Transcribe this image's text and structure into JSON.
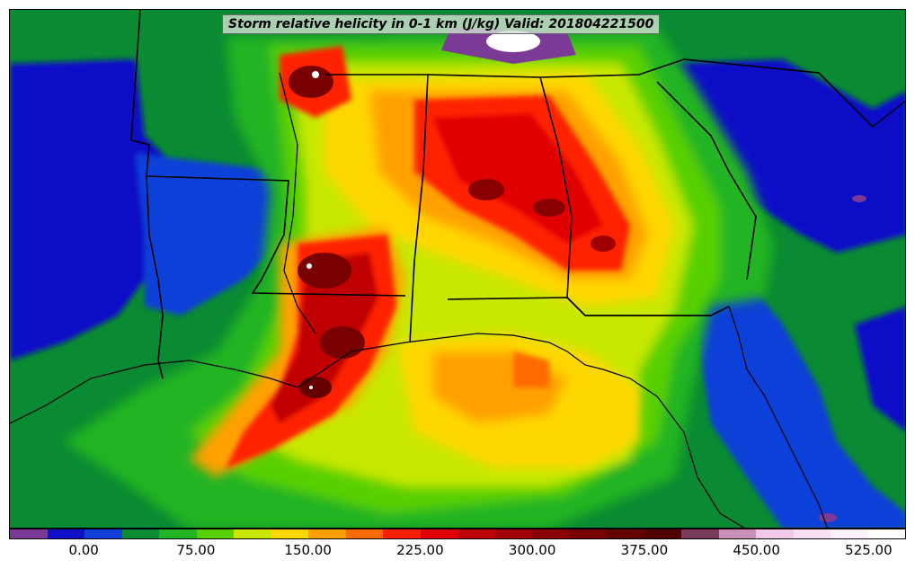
{
  "map": {
    "title": "Storm relative helicity in 0-1 km (J/kg) Valid: 201804221500",
    "background_color": "#0a8a32"
  },
  "colorbar": {
    "colors": [
      "#7b3a96",
      "#1010c8",
      "#1040d8",
      "#0a8a32",
      "#22b422",
      "#58d000",
      "#c8e800",
      "#ffd700",
      "#ffa000",
      "#ff6a00",
      "#ff2000",
      "#e00000",
      "#c00000",
      "#a00000",
      "#8a0000",
      "#780000",
      "#640000",
      "#500000",
      "#7a3a5a",
      "#c890b8",
      "#f0c8e8",
      "#f8e0f4",
      "#fff0ff",
      "#ffffff"
    ],
    "tick_labels": [
      "0.00",
      "75.00",
      "150.00",
      "225.00",
      "300.00",
      "375.00",
      "450.00",
      "525.00"
    ],
    "tick_positions": [
      2,
      5,
      8,
      11,
      14,
      17,
      20,
      23
    ]
  },
  "icons": [
    "land-ocean-base",
    "state-boundary",
    "coastline"
  ]
}
